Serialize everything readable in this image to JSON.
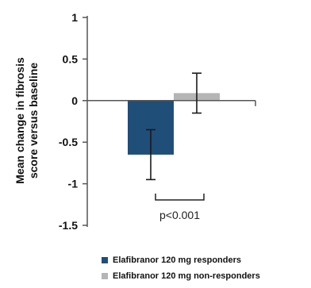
{
  "chart_data": {
    "type": "bar",
    "title": "",
    "xlabel": "",
    "ylabel_lines": [
      "Mean change in fibrosis",
      "score versus baseline"
    ],
    "ylim": [
      -1.5,
      1
    ],
    "yticks": [
      {
        "value": 1,
        "label": "1"
      },
      {
        "value": 0.5,
        "label": "0.5"
      },
      {
        "value": 0,
        "label": "0"
      },
      {
        "value": -0.5,
        "label": "-0.5"
      },
      {
        "value": -1,
        "label": "-1"
      },
      {
        "value": -1.5,
        "label": "-1.5"
      }
    ],
    "series": [
      {
        "name": "Elafibranor 120 mg responders",
        "value": -0.65,
        "error_low": -0.95,
        "error_high": -0.35,
        "color": "#1f4e79"
      },
      {
        "name": "Elafibranor 120 mg non-responders",
        "value": 0.09,
        "error_low": -0.15,
        "error_high": 0.33,
        "color": "#b5b5b5"
      }
    ],
    "annotation": "p<0.001",
    "legend_position": "bottom"
  }
}
